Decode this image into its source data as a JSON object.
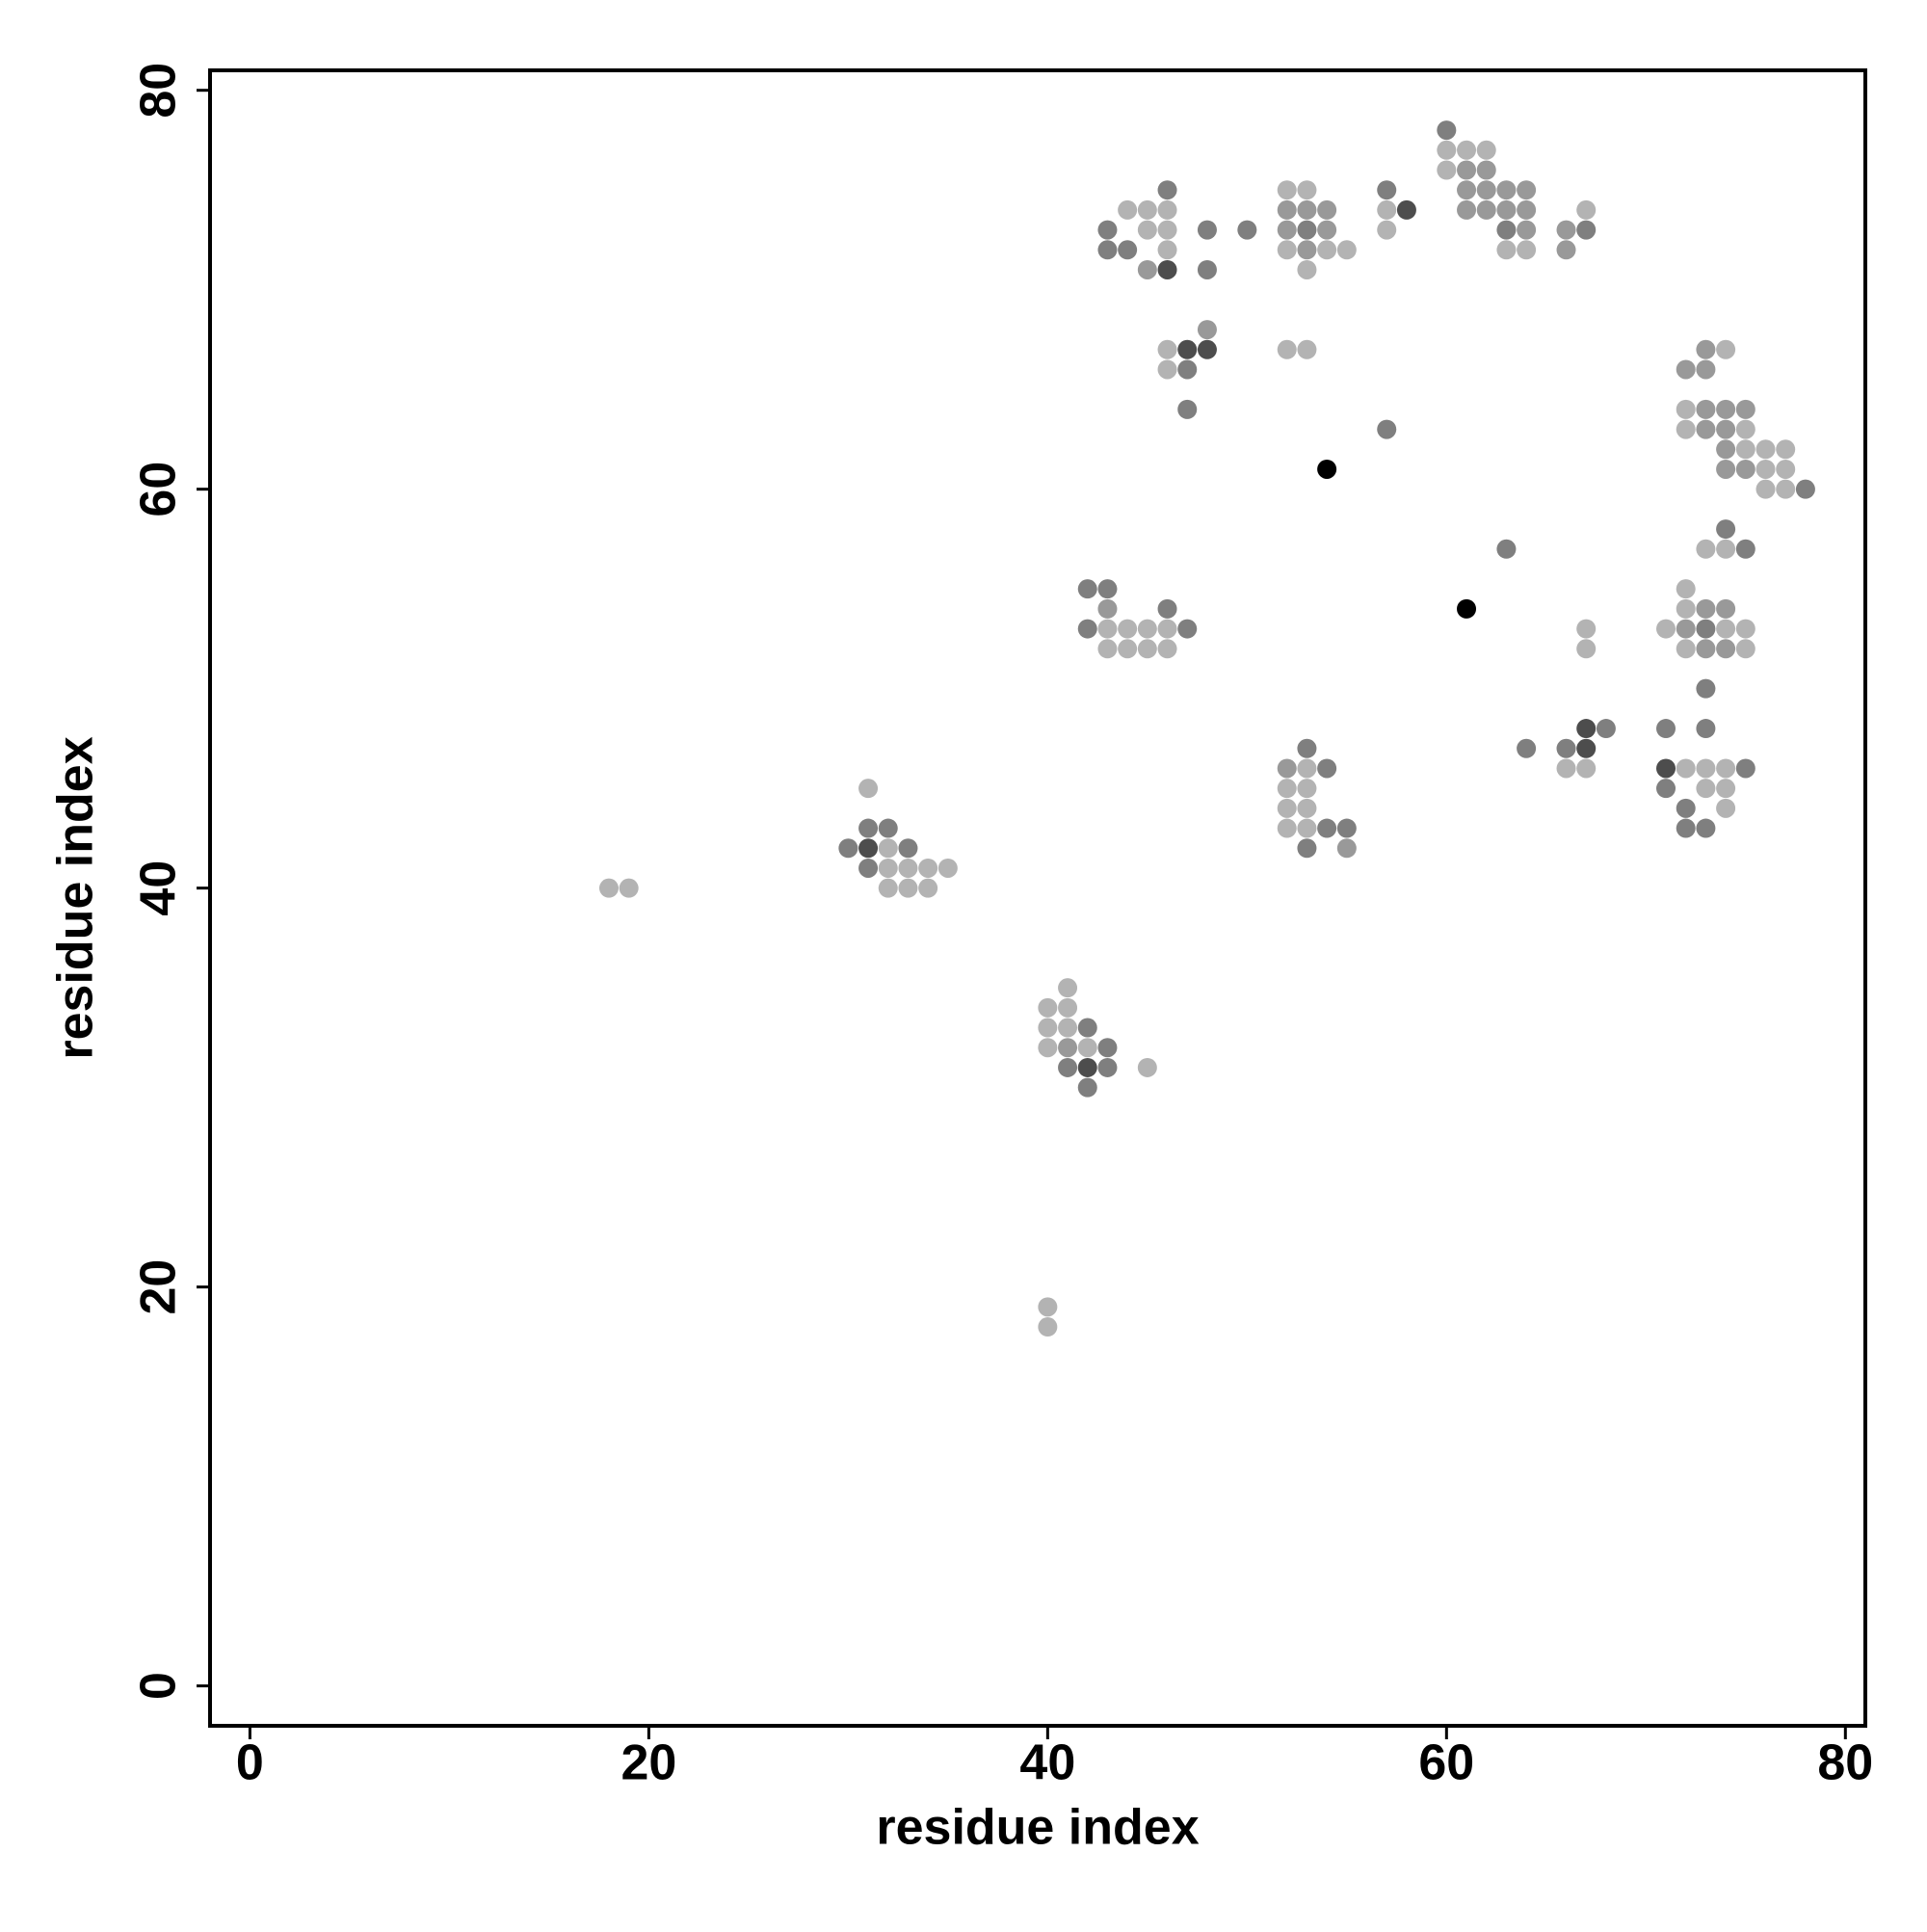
{
  "chart_data": {
    "type": "scatter",
    "x_label": "residue index",
    "y_label": "residue index",
    "xlim": [
      -2,
      81
    ],
    "ylim": [
      -2,
      81
    ],
    "xticks": [
      0,
      20,
      40,
      60,
      80
    ],
    "yticks": [
      0,
      20,
      40,
      60,
      80
    ],
    "series": [
      {
        "color": "#b3b3b3",
        "x": [
          60,
          61,
          62,
          60,
          52,
          53,
          44,
          45,
          46,
          57,
          67,
          45,
          46,
          57,
          46,
          52,
          54,
          55,
          63,
          64,
          53,
          46,
          52,
          53,
          74,
          46,
          72,
          72,
          75,
          75,
          76,
          77,
          76,
          77,
          76,
          77,
          73,
          74,
          72,
          72,
          43,
          44,
          45,
          46,
          67,
          71,
          74,
          75,
          43,
          44,
          45,
          46,
          67,
          72,
          75,
          53,
          66,
          67,
          72,
          73,
          74,
          31,
          52,
          53,
          73,
          74,
          52,
          53,
          74,
          52,
          53,
          32,
          32,
          33,
          34,
          35,
          18,
          19,
          32,
          33,
          34,
          41,
          40,
          41,
          40,
          41,
          40,
          42,
          45,
          40,
          40
        ],
        "y": [
          77,
          77,
          77,
          76,
          75,
          75,
          74,
          74,
          74,
          74,
          74,
          73,
          73,
          73,
          72,
          72,
          72,
          72,
          72,
          72,
          71,
          67,
          67,
          67,
          67,
          66,
          64,
          63,
          63,
          62,
          62,
          62,
          61,
          61,
          60,
          60,
          57,
          57,
          55,
          54,
          53,
          53,
          53,
          53,
          53,
          53,
          53,
          53,
          52,
          52,
          52,
          52,
          52,
          52,
          52,
          46,
          46,
          46,
          46,
          46,
          46,
          45,
          45,
          45,
          45,
          45,
          44,
          44,
          44,
          43,
          43,
          42,
          41,
          41,
          41,
          41,
          40,
          40,
          40,
          40,
          40,
          35,
          34,
          34,
          33,
          33,
          32,
          32,
          31,
          19,
          18
        ]
      },
      {
        "color": "#999999",
        "x": [
          61,
          62,
          61,
          62,
          63,
          64,
          52,
          53,
          54,
          61,
          62,
          63,
          64,
          52,
          54,
          64,
          66,
          53,
          66,
          45,
          48,
          73,
          72,
          73,
          73,
          74,
          75,
          73,
          74,
          74,
          74,
          75,
          43,
          73,
          74,
          72,
          73,
          74,
          52,
          55,
          41
        ],
        "y": [
          76,
          76,
          75,
          75,
          75,
          75,
          74,
          74,
          74,
          74,
          74,
          74,
          74,
          73,
          73,
          73,
          73,
          72,
          72,
          71,
          68,
          67,
          66,
          66,
          64,
          64,
          64,
          63,
          63,
          62,
          61,
          61,
          54,
          54,
          54,
          53,
          52,
          52,
          46,
          42,
          32
        ]
      },
      {
        "color": "#7f7f7f",
        "x": [
          60,
          46,
          57,
          43,
          48,
          50,
          53,
          63,
          67,
          43,
          44,
          48,
          47,
          47,
          57,
          78,
          74,
          63,
          75,
          42,
          43,
          46,
          42,
          47,
          73,
          73,
          68,
          71,
          73,
          53,
          64,
          66,
          54,
          75,
          71,
          72,
          31,
          32,
          54,
          55,
          72,
          73,
          30,
          33,
          53,
          31,
          42,
          43,
          41,
          43,
          42
        ],
        "y": [
          78,
          75,
          75,
          73,
          73,
          73,
          73,
          73,
          73,
          72,
          72,
          71,
          66,
          64,
          63,
          60,
          58,
          57,
          57,
          55,
          55,
          54,
          53,
          53,
          53,
          50,
          48,
          48,
          48,
          47,
          47,
          47,
          46,
          46,
          45,
          44,
          43,
          43,
          43,
          43,
          43,
          43,
          42,
          42,
          42,
          41,
          33,
          32,
          31,
          31,
          30
        ]
      },
      {
        "color": "#4d4d4d",
        "x": [
          58,
          46,
          47,
          48,
          67,
          67,
          71,
          31,
          42
        ],
        "y": [
          74,
          71,
          67,
          67,
          48,
          47,
          46,
          42,
          31
        ]
      },
      {
        "color": "#000000",
        "x": [
          54,
          61
        ],
        "y": [
          61,
          54
        ]
      }
    ]
  }
}
